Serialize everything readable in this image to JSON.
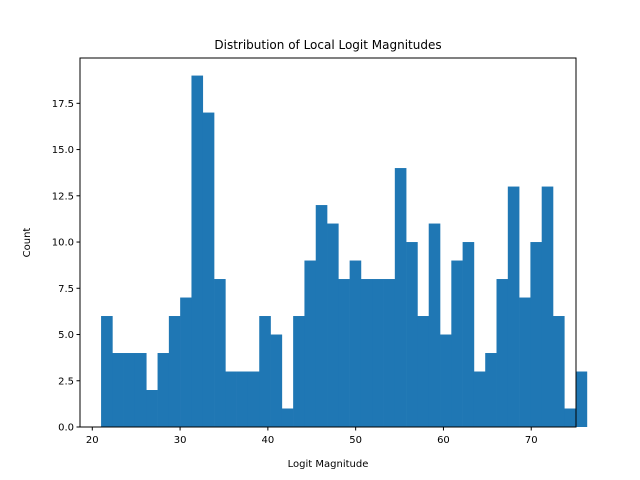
{
  "chart_data": {
    "type": "bar",
    "title": "Distribution of Local Logit Magnitudes",
    "xlabel": "Logit Magnitude",
    "ylabel": "Count",
    "xlim": [
      18.6,
      75.1
    ],
    "ylim": [
      0,
      19.95
    ],
    "bar_color": "#1f77b4",
    "bin_width": 1.287,
    "bin_start": 21.0,
    "counts": [
      6,
      4,
      4,
      4,
      2,
      4,
      6,
      7,
      19,
      17,
      8,
      3,
      3,
      3,
      6,
      5,
      1,
      6,
      9,
      12,
      11,
      8,
      9,
      8,
      8,
      8,
      14,
      10,
      6,
      11,
      5,
      9,
      10,
      3,
      4,
      8,
      13,
      7,
      10,
      13,
      6,
      1,
      3
    ],
    "xticks": [
      20,
      30,
      40,
      50,
      60,
      70
    ],
    "xtick_labels": [
      "20",
      "30",
      "40",
      "50",
      "60",
      "70"
    ],
    "yticks": [
      0,
      2.5,
      5,
      7.5,
      10,
      12.5,
      15,
      17.5
    ],
    "ytick_labels": [
      "0.0",
      "2.5",
      "5.0",
      "7.5",
      "10.0",
      "12.5",
      "15.0",
      "17.5"
    ],
    "grid": false,
    "legend": "none"
  }
}
